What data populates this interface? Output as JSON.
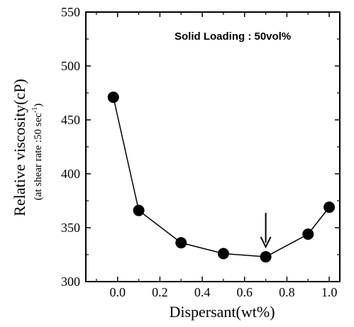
{
  "chart_data": {
    "type": "line",
    "title": "",
    "xlabel": "Dispersant(wt%)",
    "ylabel": "Relative viscosity(cP)",
    "ylabel_sub": "(at shear rate :50 sec",
    "ylabel_sub_sup": "-1",
    "ylabel_sub_end": ")",
    "annotation": "Solid Loading : 50vol%",
    "xlim": [
      -0.15,
      1.05
    ],
    "ylim": [
      300,
      550
    ],
    "xticks": [
      "0.0",
      "0.2",
      "0.4",
      "0.6",
      "0.8",
      "1.0"
    ],
    "yticks": [
      "300",
      "350",
      "400",
      "450",
      "500",
      "550"
    ],
    "grid": false,
    "series": [
      {
        "x": [
          -0.02,
          0.1,
          0.3,
          0.5,
          0.7,
          0.9,
          1.0
        ],
        "y": [
          471,
          366,
          336,
          326,
          323,
          344,
          369
        ],
        "color": "#000000",
        "marker": "filled-circle"
      }
    ],
    "arrow_at": {
      "x": 0.7
    }
  }
}
